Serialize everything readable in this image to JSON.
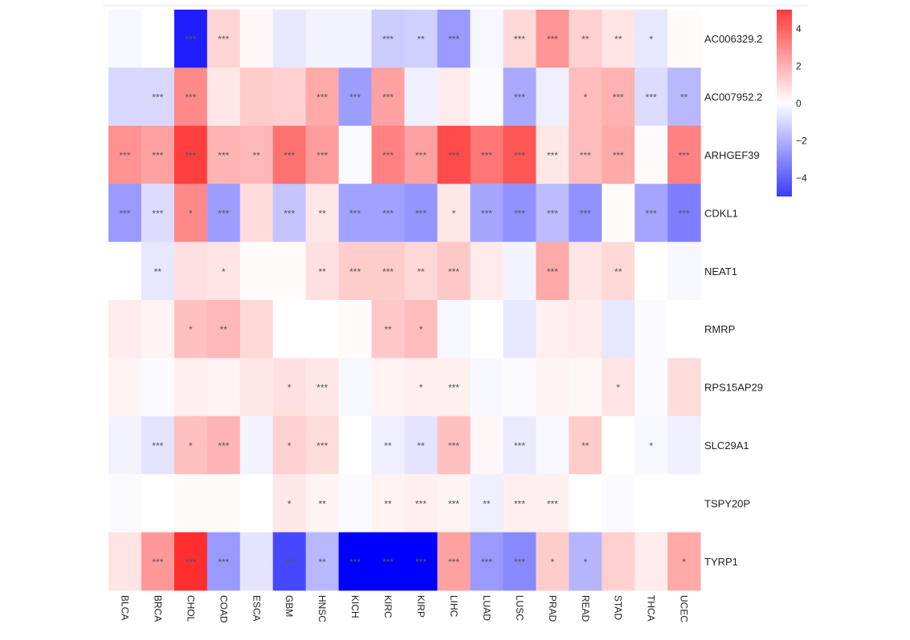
{
  "chart_data": {
    "type": "heatmap",
    "title": "",
    "xlabel": "",
    "ylabel": "",
    "columns": [
      "BLCA",
      "BRCA",
      "CHOL",
      "COAD",
      "ESCA",
      "GBM",
      "HNSC",
      "KICH",
      "KIRC",
      "KIRP",
      "LIHC",
      "LUAD",
      "LUSC",
      "PRAD",
      "READ",
      "STAD",
      "THCA",
      "UCEC"
    ],
    "rows": [
      "AC006329.2",
      "AC007952.2",
      "ARHGEF39",
      "CDKL1",
      "NEAT1",
      "RMRP",
      "RPS15AP29",
      "SLC29A1",
      "TSPY20P",
      "TYRP1"
    ],
    "values": [
      [
        -0.2,
        0,
        -5.7,
        1.1,
        0.2,
        -0.6,
        -0.3,
        -0.3,
        -1.3,
        -1.2,
        -2.6,
        -0.2,
        1.0,
        2.7,
        1.2,
        0.7,
        -0.6,
        0.1
      ],
      [
        -1.0,
        -1.0,
        3.0,
        0.6,
        1.3,
        1.2,
        2.2,
        -2.5,
        2.4,
        -0.4,
        0.5,
        -0.1,
        -2.2,
        -0.4,
        1.7,
        2.0,
        -0.9,
        -1.8
      ],
      [
        2.8,
        2.4,
        4.9,
        1.9,
        1.8,
        3.6,
        2.5,
        -0.1,
        3.2,
        2.4,
        4.6,
        3.5,
        4.3,
        0.6,
        1.7,
        2.2,
        0.1,
        3.2
      ],
      [
        -2.6,
        -0.9,
        3.0,
        -2.5,
        0.9,
        -1.5,
        0.6,
        -2.4,
        -2.4,
        -2.7,
        0.6,
        -2.3,
        -2.8,
        -1.7,
        -2.8,
        0.1,
        -2.3,
        -3.3
      ],
      [
        0,
        -0.6,
        0.8,
        0.7,
        0.1,
        0.1,
        0.8,
        1.3,
        1.3,
        1.0,
        1.4,
        0.5,
        -0.3,
        2.2,
        0.7,
        1.0,
        0,
        -0.2
      ],
      [
        0.5,
        0.3,
        1.6,
        1.8,
        1.0,
        0,
        0,
        0.1,
        1.4,
        1.7,
        -0.2,
        0,
        -0.6,
        0.4,
        0.5,
        -0.6,
        -0.1,
        0
      ],
      [
        0.3,
        -0.1,
        0.4,
        0.3,
        0.6,
        0.8,
        0.6,
        -0.2,
        0.3,
        0.4,
        0.4,
        -0.2,
        -0.1,
        0.3,
        0.2,
        0.7,
        -0.1,
        0.9
      ],
      [
        -0.3,
        -0.7,
        1.6,
        1.9,
        -0.3,
        1.2,
        0.9,
        0,
        -0.4,
        -0.7,
        1.6,
        0.2,
        -0.5,
        -0.2,
        1.3,
        0,
        -0.2,
        -0.4
      ],
      [
        -0.1,
        0,
        0.1,
        0.1,
        0,
        0.6,
        0.3,
        -0.1,
        0.3,
        0.4,
        0.3,
        -0.4,
        0.4,
        0.4,
        0,
        -0.1,
        0,
        0
      ],
      [
        0.7,
        2.6,
        5.3,
        -2.6,
        -0.7,
        -4.7,
        -1.8,
        -6.5,
        -6.5,
        -6.5,
        2.4,
        -2.6,
        -3.0,
        1.3,
        -1.9,
        1.2,
        0.5,
        2.2
      ]
    ],
    "significance": [
      [
        "",
        "",
        "***",
        "***",
        "",
        "",
        "",
        "",
        "***",
        "**",
        "***",
        "",
        "***",
        "***",
        "**",
        "**",
        "*",
        ""
      ],
      [
        "",
        "***",
        "***",
        "",
        "",
        "",
        "***",
        "***",
        "***",
        "",
        "",
        "",
        "***",
        "",
        "*",
        "***",
        "***",
        "**"
      ],
      [
        "***",
        "***",
        "***",
        "***",
        "**",
        "***",
        "***",
        "",
        "***",
        "***",
        "***",
        "***",
        "***",
        "***",
        "***",
        "***",
        "",
        "***"
      ],
      [
        "***",
        "***",
        "*",
        "***",
        "",
        "***",
        "**",
        "***",
        "***",
        "***",
        "*",
        "***",
        "***",
        "***",
        "***",
        "",
        "***",
        "***"
      ],
      [
        "",
        "**",
        "",
        "*",
        "",
        "",
        "**",
        "***",
        "***",
        "**",
        "***",
        "",
        "",
        "***",
        "",
        "**",
        "",
        ""
      ],
      [
        "",
        "",
        "*",
        "**",
        "",
        "",
        "",
        "",
        "**",
        "*",
        "",
        "",
        "",
        "",
        "",
        "",
        "",
        ""
      ],
      [
        "",
        "",
        "",
        "",
        "",
        "*",
        "***",
        "",
        "",
        "*",
        "***",
        "",
        "",
        "",
        "",
        "*",
        "",
        ""
      ],
      [
        "",
        "***",
        "*",
        "***",
        "",
        "*",
        "***",
        "",
        "**",
        "**",
        "***",
        "",
        "***",
        "",
        "**",
        "",
        "*",
        ""
      ],
      [
        "",
        "",
        "",
        "",
        "",
        "*",
        "**",
        "",
        "**",
        "***",
        "***",
        "**",
        "***",
        "***",
        "",
        "",
        "",
        ""
      ],
      [
        "",
        "***",
        "***",
        "***",
        "",
        "***",
        "**",
        "***",
        "***",
        "***",
        "***",
        "***",
        "***",
        "*",
        "*",
        "",
        "",
        "*"
      ]
    ],
    "colorscale": {
      "low": "#0000ff",
      "mid": "#ffffff",
      "high": "#ff0000"
    },
    "colorbar": {
      "range": [
        -5,
        5
      ],
      "ticks": [
        4,
        2,
        0,
        -2,
        -4
      ],
      "tick_labels": [
        "4",
        "2",
        "0",
        "−2",
        "−4"
      ],
      "placement": "right"
    },
    "grid": false
  }
}
